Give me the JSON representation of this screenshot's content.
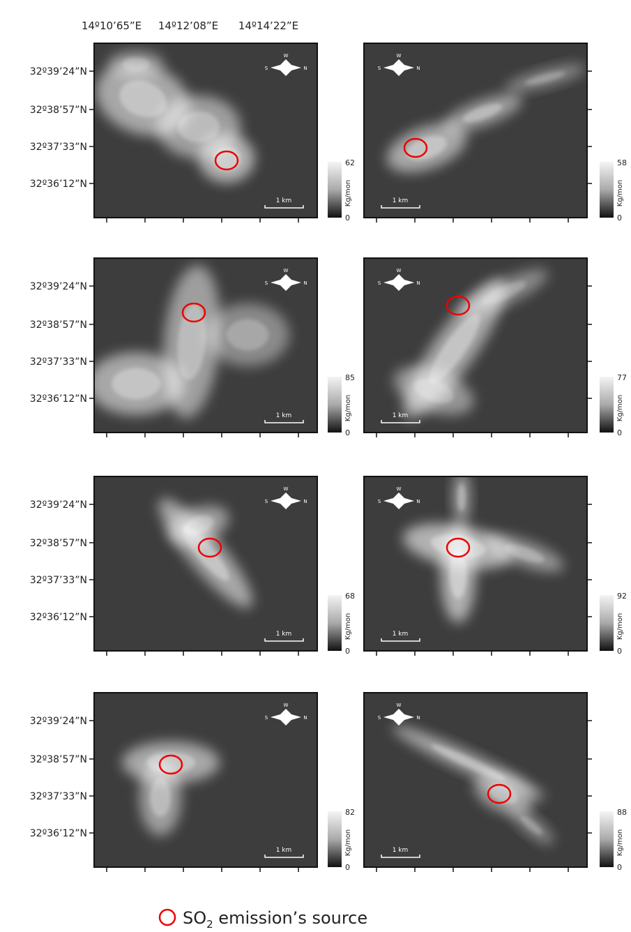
{
  "header": {
    "longitudes": [
      "14º10’65”E",
      "14º12’08”E",
      "14º14’22”E"
    ]
  },
  "latitudes": [
    "32º39’24”N",
    "32º38’57”N",
    "32º37’33”N",
    "32º36’12”N"
  ],
  "compass": {
    "w": "W",
    "s": "S",
    "n": "N"
  },
  "colorbar_unit": "Kg/mon",
  "scale_label": "1 km",
  "panels": [
    {
      "max": "62",
      "min": "0"
    },
    {
      "max": "58",
      "min": "0"
    },
    {
      "max": "85",
      "min": "0"
    },
    {
      "max": "77",
      "min": "0"
    },
    {
      "max": "68",
      "min": "0"
    },
    {
      "max": "92",
      "min": "0"
    },
    {
      "max": "82",
      "min": "0"
    },
    {
      "max": "88",
      "min": "0"
    }
  ],
  "legend": {
    "prefix": "SO",
    "subscript": "2",
    "suffix": " emission’s source"
  }
}
